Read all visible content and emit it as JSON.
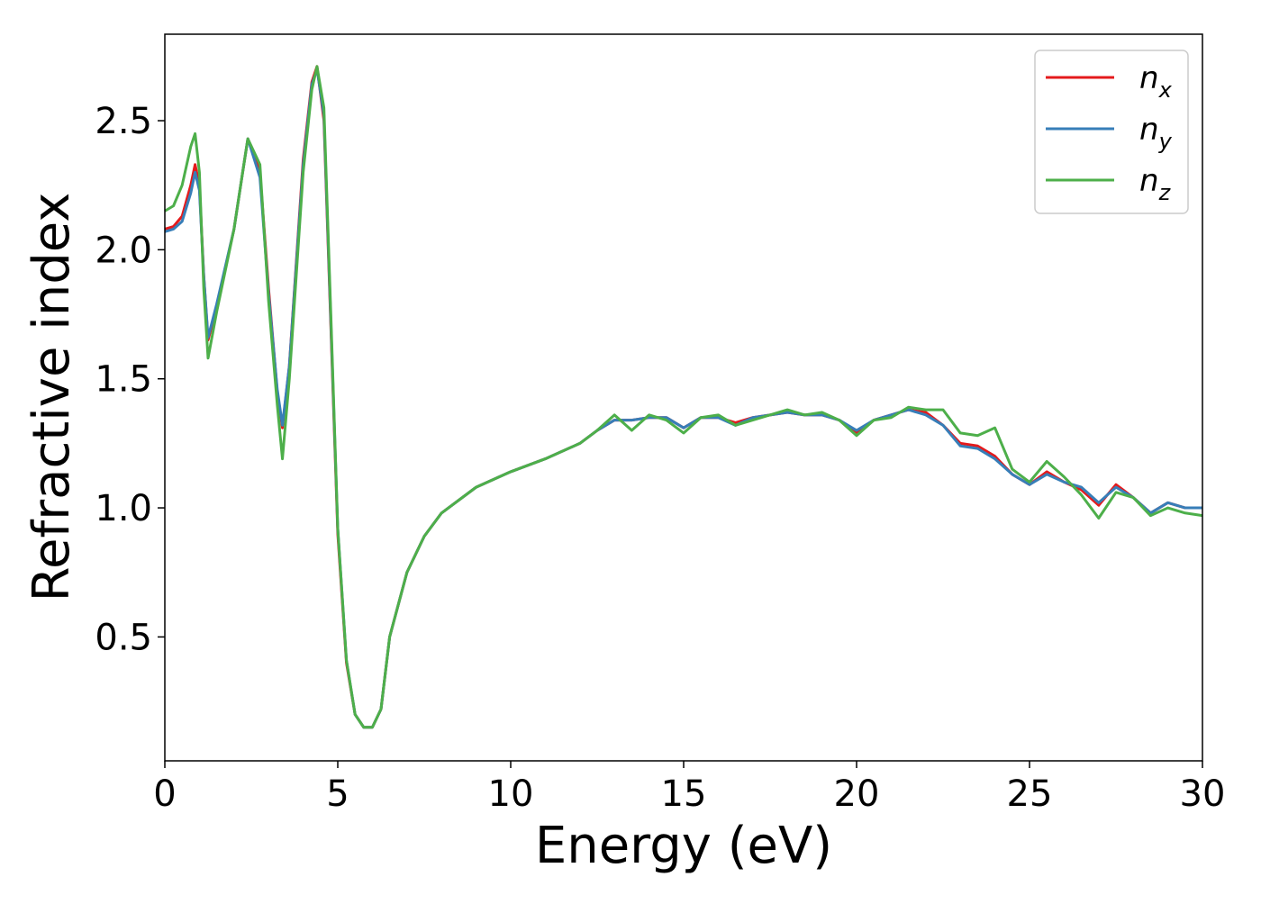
{
  "chart_data": {
    "type": "line",
    "xlabel": "Energy (eV)",
    "ylabel": "Refractive index",
    "xlim": [
      0,
      30
    ],
    "ylim": [
      0.02,
      2.835
    ],
    "xticks": [
      0,
      5,
      10,
      15,
      20,
      25,
      30
    ],
    "yticks": [
      0.5,
      1.0,
      1.5,
      2.0,
      2.5
    ],
    "ytick_labels_fixed": true,
    "legend": "upper right",
    "x": [
      0,
      0.25,
      0.5,
      0.75,
      0.875,
      1,
      1.125,
      1.25,
      1.5,
      2,
      2.25,
      2.4,
      2.75,
      3,
      3.25,
      3.4,
      3.6,
      4,
      4.25,
      4.4,
      4.6,
      4.8,
      5,
      5.25,
      5.5,
      5.75,
      6,
      6.25,
      6.5,
      7,
      7.5,
      8,
      9,
      10,
      11,
      12,
      12.5,
      13,
      13.5,
      14,
      14.5,
      15,
      15.5,
      16,
      16.5,
      17,
      17.5,
      18,
      18.5,
      19,
      19.5,
      20,
      20.5,
      21,
      21.5,
      22,
      22.5,
      23,
      23.5,
      24,
      24.5,
      25,
      25.5,
      26,
      26.5,
      27,
      27.5,
      28,
      28.5,
      29,
      29.5,
      30
    ],
    "series": [
      {
        "name": "nx",
        "color": "#e41a1c",
        "values": [
          2.08,
          2.09,
          2.13,
          2.25,
          2.33,
          2.25,
          1.9,
          1.65,
          1.78,
          2.08,
          2.3,
          2.43,
          2.3,
          1.85,
          1.45,
          1.31,
          1.55,
          2.35,
          2.65,
          2.71,
          2.5,
          1.7,
          0.9,
          0.4,
          0.2,
          0.15,
          0.15,
          0.22,
          0.5,
          0.75,
          0.89,
          0.98,
          1.08,
          1.14,
          1.19,
          1.25,
          1.3,
          1.34,
          1.34,
          1.35,
          1.35,
          1.31,
          1.35,
          1.35,
          1.33,
          1.35,
          1.36,
          1.37,
          1.36,
          1.36,
          1.34,
          1.29,
          1.34,
          1.36,
          1.38,
          1.37,
          1.32,
          1.25,
          1.24,
          1.2,
          1.13,
          1.09,
          1.14,
          1.1,
          1.07,
          1.01,
          1.09,
          1.04,
          0.98,
          1.02,
          1.0,
          1.0
        ]
      },
      {
        "name": "ny",
        "color": "#377eb8",
        "values": [
          2.07,
          2.08,
          2.11,
          2.22,
          2.3,
          2.23,
          1.9,
          1.66,
          1.79,
          2.08,
          2.3,
          2.43,
          2.28,
          1.83,
          1.46,
          1.32,
          1.55,
          2.33,
          2.64,
          2.7,
          2.52,
          1.72,
          0.92,
          0.41,
          0.2,
          0.15,
          0.15,
          0.22,
          0.5,
          0.75,
          0.89,
          0.98,
          1.08,
          1.14,
          1.19,
          1.25,
          1.3,
          1.34,
          1.34,
          1.35,
          1.35,
          1.31,
          1.35,
          1.35,
          1.32,
          1.35,
          1.36,
          1.37,
          1.36,
          1.36,
          1.34,
          1.3,
          1.34,
          1.36,
          1.38,
          1.36,
          1.32,
          1.24,
          1.23,
          1.19,
          1.13,
          1.09,
          1.13,
          1.1,
          1.08,
          1.02,
          1.08,
          1.04,
          0.98,
          1.02,
          1.0,
          1.0
        ]
      },
      {
        "name": "nz",
        "color": "#4daf4a",
        "values": [
          2.15,
          2.17,
          2.25,
          2.4,
          2.45,
          2.3,
          1.85,
          1.58,
          1.76,
          2.08,
          2.3,
          2.43,
          2.33,
          1.8,
          1.4,
          1.19,
          1.5,
          2.3,
          2.62,
          2.71,
          2.55,
          1.75,
          0.92,
          0.41,
          0.2,
          0.15,
          0.15,
          0.22,
          0.5,
          0.75,
          0.89,
          0.98,
          1.08,
          1.14,
          1.19,
          1.25,
          1.3,
          1.36,
          1.3,
          1.36,
          1.34,
          1.29,
          1.35,
          1.36,
          1.32,
          1.34,
          1.36,
          1.38,
          1.36,
          1.37,
          1.34,
          1.28,
          1.34,
          1.35,
          1.39,
          1.38,
          1.38,
          1.29,
          1.28,
          1.31,
          1.15,
          1.1,
          1.18,
          1.12,
          1.05,
          0.96,
          1.06,
          1.04,
          0.97,
          1.0,
          0.98,
          0.97
        ]
      }
    ]
  }
}
